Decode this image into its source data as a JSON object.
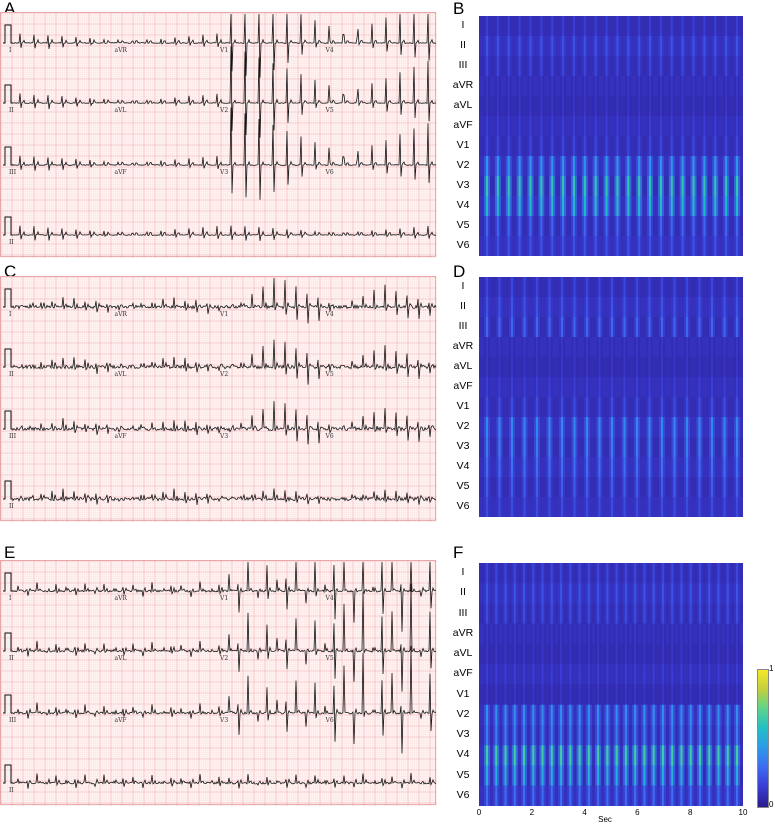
{
  "panels": [
    {
      "id": "A",
      "kind": "ecg"
    },
    {
      "id": "B",
      "kind": "heatmap"
    },
    {
      "id": "C",
      "kind": "ecg"
    },
    {
      "id": "D",
      "kind": "heatmap"
    },
    {
      "id": "E",
      "kind": "ecg"
    },
    {
      "id": "F",
      "kind": "heatmap"
    }
  ],
  "ecg_lead_layout": [
    [
      "I",
      "aVR",
      "V1",
      "V4"
    ],
    [
      "II",
      "aVL",
      "V2",
      "V5"
    ],
    [
      "III",
      "aVF",
      "V3",
      "V6"
    ],
    [
      "II"
    ]
  ],
  "chart_data": [
    {
      "panel": "B",
      "type": "heatmap",
      "leads": [
        "I",
        "II",
        "III",
        "aVR",
        "aVL",
        "aVF",
        "V1",
        "V2",
        "V3",
        "V4",
        "V5",
        "V6"
      ],
      "beats": 24,
      "lead_intensity": [
        0.15,
        0.22,
        0.18,
        0.12,
        0.12,
        0.15,
        0.18,
        0.42,
        0.62,
        0.55,
        0.28,
        0.22
      ]
    },
    {
      "panel": "D",
      "type": "heatmap",
      "leads": [
        "I",
        "II",
        "III",
        "aVR",
        "aVL",
        "aVF",
        "V1",
        "V2",
        "V3",
        "V4",
        "V5",
        "V6"
      ],
      "beats": 21,
      "lead_intensity": [
        0.18,
        0.22,
        0.28,
        0.12,
        0.12,
        0.15,
        0.2,
        0.38,
        0.35,
        0.3,
        0.25,
        0.2
      ]
    },
    {
      "panel": "F",
      "type": "heatmap",
      "leads": [
        "I",
        "II",
        "III",
        "aVR",
        "aVL",
        "aVF",
        "V1",
        "V2",
        "V3",
        "V4",
        "V5",
        "V6"
      ],
      "beats": 28,
      "lead_intensity": [
        0.18,
        0.22,
        0.2,
        0.12,
        0.12,
        0.15,
        0.12,
        0.4,
        0.35,
        0.66,
        0.5,
        0.3
      ],
      "xlabel": "Sec",
      "xticks": [
        "0",
        "2",
        "4",
        "6",
        "8",
        "10"
      ],
      "colorbar": {
        "min": "0",
        "max": "1"
      }
    }
  ]
}
